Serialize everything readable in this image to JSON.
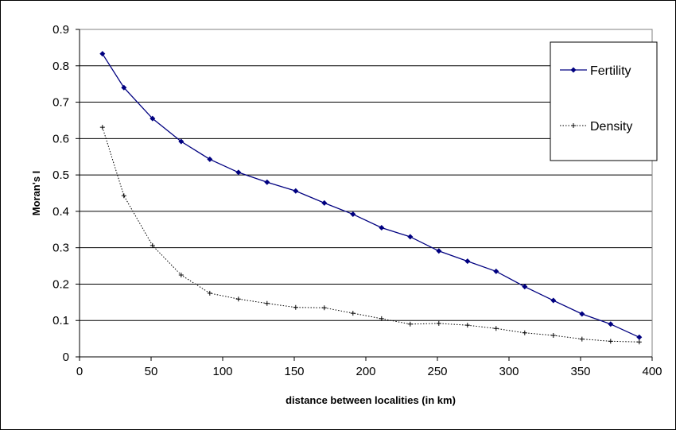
{
  "chart_data": {
    "type": "line",
    "title": "",
    "xlabel": "distance between localities (in km)",
    "ylabel": "Moran's I",
    "xlim": [
      0,
      400
    ],
    "ylim": [
      0,
      0.9
    ],
    "x_ticks": [
      "0",
      "50",
      "100",
      "150",
      "200",
      "250",
      "300",
      "350",
      "400"
    ],
    "y_ticks": [
      "0",
      "0.1",
      "0.2",
      "0.3",
      "0.4",
      "0.5",
      "0.6",
      "0.7",
      "0.8",
      "0.9"
    ],
    "grid": "horizontal",
    "legend_position": "top-right",
    "x": [
      16,
      31,
      51,
      71,
      91,
      111,
      131,
      151,
      171,
      191,
      211,
      231,
      251,
      271,
      291,
      311,
      331,
      351,
      371,
      391
    ],
    "series": [
      {
        "name": "Fertility",
        "color": "#000080",
        "style": "solid",
        "marker": "diamond",
        "values": [
          0.833,
          0.74,
          0.655,
          0.592,
          0.543,
          0.507,
          0.48,
          0.456,
          0.423,
          0.392,
          0.355,
          0.33,
          0.291,
          0.263,
          0.235,
          0.193,
          0.155,
          0.118,
          0.09,
          0.054
        ]
      },
      {
        "name": "Density",
        "color": "#000000",
        "style": "dotted",
        "marker": "plus",
        "values": [
          0.631,
          0.443,
          0.306,
          0.225,
          0.175,
          0.159,
          0.147,
          0.136,
          0.135,
          0.12,
          0.105,
          0.09,
          0.092,
          0.087,
          0.078,
          0.066,
          0.059,
          0.049,
          0.043,
          0.041
        ]
      }
    ]
  }
}
